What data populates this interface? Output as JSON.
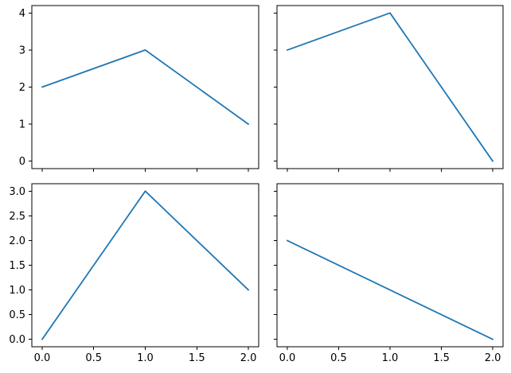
{
  "figure": {
    "background": "#ffffff",
    "rows": 2,
    "cols": 2,
    "sharex": "col",
    "sharey": "row",
    "grid": false,
    "legend": "none",
    "spine_color": "#000000",
    "line_width": 1.8,
    "tick_length": 4,
    "tick_color": "#000000"
  },
  "chart_data": [
    {
      "type": "line",
      "name": "subplot-top-left",
      "title": "",
      "xlabel": "",
      "ylabel": "",
      "color": "#1f77b4",
      "x": [
        0,
        1,
        2
      ],
      "values": [
        2,
        3,
        1
      ],
      "xlim": [
        -0.1,
        2.1
      ],
      "ylim": [
        -0.2,
        4.2
      ],
      "xticks": [
        0,
        0.5,
        1,
        1.5,
        2
      ],
      "xtick_labels": [
        "0.0",
        "0.5",
        "1.0",
        "1.5",
        "2.0"
      ],
      "show_xtick_labels": false,
      "yticks": [
        0,
        1,
        2,
        3,
        4
      ],
      "ytick_labels": [
        "0",
        "1",
        "2",
        "3",
        "4"
      ],
      "show_ytick_labels": true
    },
    {
      "type": "line",
      "name": "subplot-top-right",
      "title": "",
      "xlabel": "",
      "ylabel": "",
      "color": "#1f77b4",
      "x": [
        0,
        1,
        2
      ],
      "values": [
        3,
        4,
        0
      ],
      "xlim": [
        -0.1,
        2.1
      ],
      "ylim": [
        -0.2,
        4.2
      ],
      "xticks": [
        0,
        0.5,
        1,
        1.5,
        2
      ],
      "xtick_labels": [
        "0.0",
        "0.5",
        "1.0",
        "1.5",
        "2.0"
      ],
      "show_xtick_labels": false,
      "yticks": [
        0,
        1,
        2,
        3,
        4
      ],
      "ytick_labels": [
        "0",
        "1",
        "2",
        "3",
        "4"
      ],
      "show_ytick_labels": false
    },
    {
      "type": "line",
      "name": "subplot-bottom-left",
      "title": "",
      "xlabel": "",
      "ylabel": "",
      "color": "#1f77b4",
      "x": [
        0,
        1,
        2
      ],
      "values": [
        0,
        3,
        1
      ],
      "xlim": [
        -0.1,
        2.1
      ],
      "ylim": [
        -0.15,
        3.15
      ],
      "xticks": [
        0,
        0.5,
        1,
        1.5,
        2
      ],
      "xtick_labels": [
        "0.0",
        "0.5",
        "1.0",
        "1.5",
        "2.0"
      ],
      "show_xtick_labels": true,
      "yticks": [
        0,
        0.5,
        1,
        1.5,
        2,
        2.5,
        3
      ],
      "ytick_labels": [
        "0.0",
        "0.5",
        "1.0",
        "1.5",
        "2.0",
        "2.5",
        "3.0"
      ],
      "show_ytick_labels": true
    },
    {
      "type": "line",
      "name": "subplot-bottom-right",
      "title": "",
      "xlabel": "",
      "ylabel": "",
      "color": "#1f77b4",
      "x": [
        0,
        1,
        2
      ],
      "values": [
        2,
        1,
        0
      ],
      "xlim": [
        -0.1,
        2.1
      ],
      "ylim": [
        -0.15,
        3.15
      ],
      "xticks": [
        0,
        0.5,
        1,
        1.5,
        2
      ],
      "xtick_labels": [
        "0.0",
        "0.5",
        "1.0",
        "1.5",
        "2.0"
      ],
      "show_xtick_labels": true,
      "yticks": [
        0,
        0.5,
        1,
        1.5,
        2,
        2.5,
        3
      ],
      "ytick_labels": [
        "0.0",
        "0.5",
        "1.0",
        "1.5",
        "2.0",
        "2.5",
        "3.0"
      ],
      "show_ytick_labels": false
    }
  ]
}
